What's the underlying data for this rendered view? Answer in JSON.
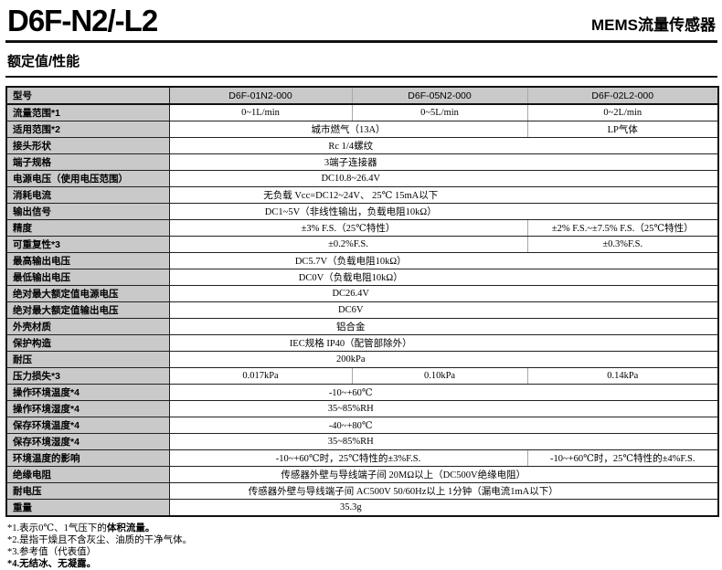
{
  "header": {
    "title": "D6F-N2/-L2",
    "subtitle": "MEMS流量传感器"
  },
  "section": {
    "title": "额定值/性能"
  },
  "colors": {
    "label_column_bg": "#c9c9c9",
    "header_row_bg": "#c9c9c9",
    "rule": "#111111"
  },
  "table": {
    "rows": [
      {
        "label": "型号",
        "header": true,
        "cells": [
          {
            "text": "D6F-01N2-000",
            "span": 1
          },
          {
            "text": "D6F-05N2-000",
            "span": 1
          },
          {
            "text": "D6F-02L2-000",
            "span": 1
          }
        ]
      },
      {
        "label": "流量范围*1",
        "cells": [
          {
            "text": "0~1L/min",
            "span": 1
          },
          {
            "text": "0~5L/min",
            "span": 1
          },
          {
            "text": "0~2L/min",
            "span": 1
          }
        ]
      },
      {
        "label": "适用范围*2",
        "cells": [
          {
            "text": "城市燃气（13A）",
            "span": 2
          },
          {
            "text": "LP气体",
            "span": 1
          }
        ]
      },
      {
        "label": "接头形状",
        "cells": [
          {
            "text": "Rc 1/4螺纹",
            "span": 3
          }
        ]
      },
      {
        "label": "端子规格",
        "cells": [
          {
            "text": "3端子连接器",
            "span": 3
          }
        ]
      },
      {
        "label": "电源电压（使用电压范围）",
        "cells": [
          {
            "text": "DC10.8~26.4V",
            "span": 3
          }
        ]
      },
      {
        "label": "消耗电流",
        "cells": [
          {
            "text": "无负载 Vcc=DC12~24V、 25℃ 15mA以下",
            "span": 3
          }
        ]
      },
      {
        "label": "输出信号",
        "cells": [
          {
            "text": "DC1~5V（非线性输出，负载电阻10kΩ）",
            "span": 3
          }
        ]
      },
      {
        "label": "精度",
        "cells": [
          {
            "text": "±3% F.S.（25℃特性）",
            "span": 2
          },
          {
            "text": "±2% F.S.~±7.5% F.S.（25℃特性）",
            "span": 1
          }
        ]
      },
      {
        "label": "可重复性*3",
        "cells": [
          {
            "text": "±0.2%F.S.",
            "span": 2
          },
          {
            "text": "±0.3%F.S.",
            "span": 1
          }
        ]
      },
      {
        "label": "最高输出电压",
        "cells": [
          {
            "text": "DC5.7V（负载电阻10kΩ）",
            "span": 3
          }
        ]
      },
      {
        "label": "最低输出电压",
        "cells": [
          {
            "text": "DC0V（负载电阻10kΩ）",
            "span": 3
          }
        ]
      },
      {
        "label": "绝对最大额定值电源电压",
        "cells": [
          {
            "text": "DC26.4V",
            "span": 3
          }
        ]
      },
      {
        "label": "绝对最大额定值输出电压",
        "cells": [
          {
            "text": "DC6V",
            "span": 3
          }
        ]
      },
      {
        "label": "外壳材质",
        "cells": [
          {
            "text": "铝合金",
            "span": 3
          }
        ]
      },
      {
        "label": "保护构造",
        "cells": [
          {
            "text": "IEC规格 IP40（配管部除外）",
            "span": 3
          }
        ]
      },
      {
        "label": "耐压",
        "cells": [
          {
            "text": "200kPa",
            "span": 3
          }
        ]
      },
      {
        "label": "压力损失*3",
        "cells": [
          {
            "text": "0.017kPa",
            "span": 1
          },
          {
            "text": "0.10kPa",
            "span": 1
          },
          {
            "text": "0.14kPa",
            "span": 1
          }
        ]
      },
      {
        "label": "操作环境温度*4",
        "cells": [
          {
            "text": "-10~+60℃",
            "span": 3
          }
        ]
      },
      {
        "label": "操作环境湿度*4",
        "cells": [
          {
            "text": "35~85%RH",
            "span": 3
          }
        ]
      },
      {
        "label": "保存环境温度*4",
        "cells": [
          {
            "text": "-40~+80℃",
            "span": 3
          }
        ]
      },
      {
        "label": "保存环境湿度*4",
        "cells": [
          {
            "text": "35~85%RH",
            "span": 3
          }
        ]
      },
      {
        "label": "环境温度的影响",
        "cells": [
          {
            "text": "-10~+60℃时，25℃特性的±3%F.S.",
            "span": 2
          },
          {
            "text": "-10~+60℃时，25℃特性的±4%F.S.",
            "span": 1
          }
        ]
      },
      {
        "label": "绝缘电阻",
        "cells": [
          {
            "text": "传感器外壁与导线端子间 20MΩ以上（DC500V绝缘电阻）",
            "span": 3,
            "wide": true
          }
        ]
      },
      {
        "label": "耐电压",
        "cells": [
          {
            "text": "传感器外壁与导线端子间 AC500V 50/60Hz以上 1分钟（漏电流1mA以下）",
            "span": 3,
            "wide": true
          }
        ]
      },
      {
        "label": "重量",
        "cells": [
          {
            "text": "35.3g",
            "span": 3
          }
        ]
      }
    ]
  },
  "footnotes": {
    "fn1_prefix": "*1.表示0℃、1气压下的",
    "fn1_bold": "体积流量。",
    "fn2": "*2.是指干燥且不含灰尘、油质的干净气体。",
    "fn3": "*3.参考值（代表值）",
    "fn4": "*4.无结冰、无凝露。"
  }
}
